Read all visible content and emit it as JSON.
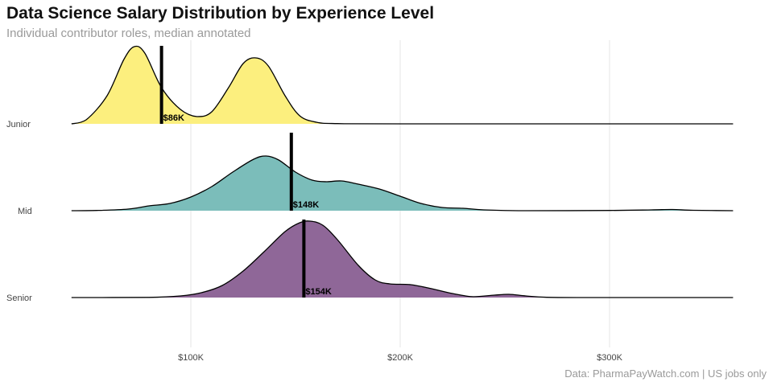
{
  "chart_data": {
    "type": "ridgeline",
    "title": "Data Science Salary Distribution by Experience Level",
    "subtitle": "Individual contributor roles, median annotated",
    "caption": "Data: PharmaPayWatch.com | US jobs only",
    "xlabel": "",
    "ylabel": "",
    "xlim": [
      43,
      359
    ],
    "x_unit": "K USD",
    "x_ticks": [
      100,
      200,
      300
    ],
    "x_tick_labels": [
      "$100K",
      "$200K",
      "$300K"
    ],
    "grid": "vertical major lines",
    "series": [
      {
        "name": "Junior",
        "color": "#fcef7e",
        "median": 86,
        "median_label": "$86K",
        "density": [
          [
            43,
            0
          ],
          [
            50,
            0.05
          ],
          [
            60,
            0.35
          ],
          [
            68,
            0.8
          ],
          [
            73,
            0.96
          ],
          [
            78,
            0.88
          ],
          [
            86,
            0.45
          ],
          [
            95,
            0.18
          ],
          [
            103,
            0.09
          ],
          [
            110,
            0.15
          ],
          [
            118,
            0.45
          ],
          [
            125,
            0.75
          ],
          [
            131,
            0.82
          ],
          [
            137,
            0.72
          ],
          [
            145,
            0.35
          ],
          [
            152,
            0.1
          ],
          [
            160,
            0.02
          ],
          [
            170,
            0.003
          ],
          [
            200,
            0
          ],
          [
            359,
            0
          ]
        ]
      },
      {
        "name": "Mid",
        "color": "#7bbdba",
        "median": 148,
        "median_label": "$148K",
        "density": [
          [
            43,
            0
          ],
          [
            55,
            0.003
          ],
          [
            70,
            0.02
          ],
          [
            80,
            0.06
          ],
          [
            90,
            0.09
          ],
          [
            100,
            0.17
          ],
          [
            110,
            0.3
          ],
          [
            120,
            0.48
          ],
          [
            130,
            0.64
          ],
          [
            136,
            0.68
          ],
          [
            142,
            0.63
          ],
          [
            150,
            0.48
          ],
          [
            158,
            0.38
          ],
          [
            165,
            0.36
          ],
          [
            172,
            0.37
          ],
          [
            180,
            0.33
          ],
          [
            190,
            0.27
          ],
          [
            200,
            0.18
          ],
          [
            210,
            0.09
          ],
          [
            220,
            0.04
          ],
          [
            230,
            0.03
          ],
          [
            240,
            0.01
          ],
          [
            260,
            0
          ],
          [
            300,
            0.003
          ],
          [
            320,
            0.01
          ],
          [
            330,
            0.015
          ],
          [
            340,
            0.005
          ],
          [
            359,
            0
          ]
        ]
      },
      {
        "name": "Senior",
        "color": "#8f6798",
        "median": 154,
        "median_label": "$154K",
        "density": [
          [
            43,
            0
          ],
          [
            80,
            0.002
          ],
          [
            95,
            0.02
          ],
          [
            105,
            0.06
          ],
          [
            115,
            0.15
          ],
          [
            125,
            0.33
          ],
          [
            135,
            0.57
          ],
          [
            145,
            0.82
          ],
          [
            152,
            0.93
          ],
          [
            157,
            0.95
          ],
          [
            163,
            0.9
          ],
          [
            170,
            0.72
          ],
          [
            180,
            0.4
          ],
          [
            188,
            0.22
          ],
          [
            195,
            0.17
          ],
          [
            205,
            0.16
          ],
          [
            215,
            0.11
          ],
          [
            225,
            0.05
          ],
          [
            235,
            0.01
          ],
          [
            245,
            0.03
          ],
          [
            252,
            0.04
          ],
          [
            260,
            0.02
          ],
          [
            270,
            0.003
          ],
          [
            290,
            0
          ],
          [
            359,
            0
          ]
        ]
      }
    ]
  }
}
